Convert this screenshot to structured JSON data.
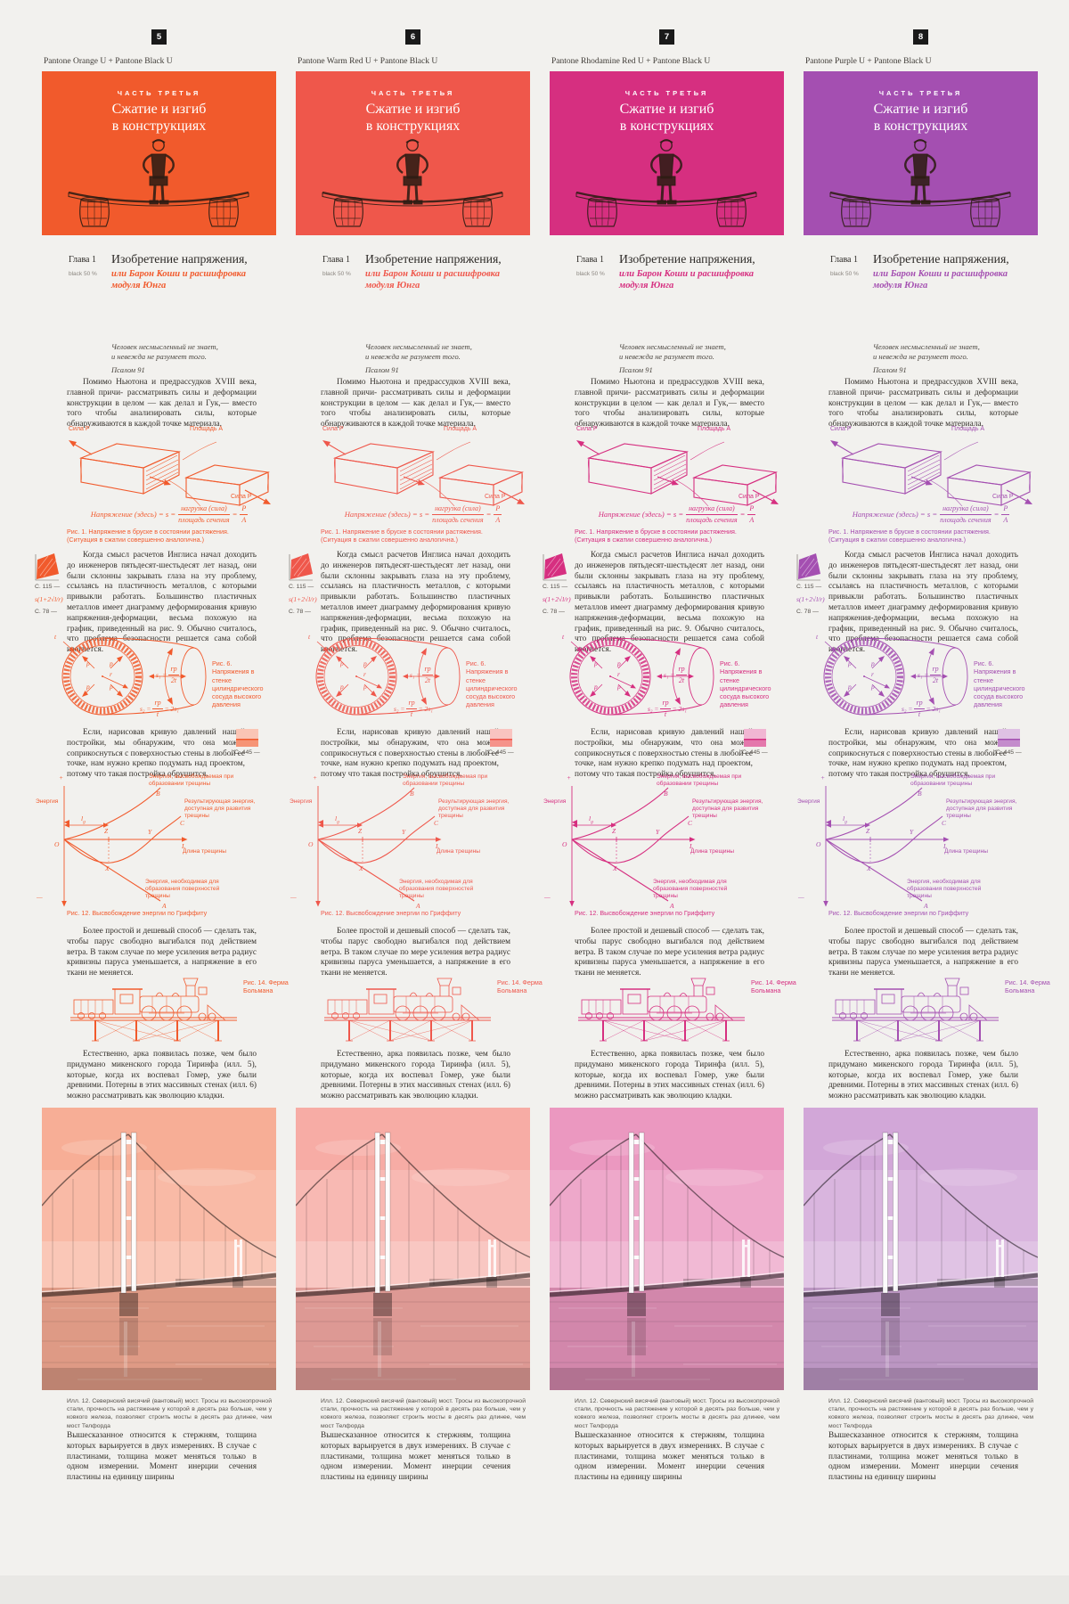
{
  "page": {
    "background": "#f2f1ee",
    "badge_color": "#1a1a1a",
    "bottom_band": "#e9e8e5"
  },
  "columns": [
    {
      "badge": "5",
      "pantone_label": "Pantone Orange U + Pantone Black U",
      "accent": "#f15a2c"
    },
    {
      "badge": "6",
      "pantone_label": "Pantone Warm Red U + Pantone Black U",
      "accent": "#ef574b"
    },
    {
      "badge": "7",
      "pantone_label": "Pantone Rhodamine Red U + Pantone Black U",
      "accent": "#d62f80"
    },
    {
      "badge": "8",
      "pantone_label": "Pantone Purple U + Pantone Black U",
      "accent": "#a44fb1"
    }
  ],
  "shared": {
    "cover": {
      "kicker": "ЧАСТЬ ТРЕТЬЯ",
      "title_line1": "Сжатие и изгиб",
      "title_line2": "в конструкциях"
    },
    "chapter": {
      "label": "Глава 1",
      "ink_note": "black 50 %",
      "title": "Изобретение напряжения,",
      "subtitle": "или Барон Коши и расшифровка модуля Юнга"
    },
    "epigraph": {
      "line1": "Человек несмысленный не знает,",
      "line2": "и невежда не разумеет того.",
      "source": "Псалом 91"
    },
    "para1": "Помимо Ньютона и предрассудков XVIII века, главной причи- рассматривать силы и деформации конструкции в целом — как делал и Гук,— вместо того чтобы анализировать силы, которые обнаруживаются в каждой точке материала.",
    "fig1": {
      "force_top": "Сила P",
      "area": "Площадь A",
      "force_bottom": "Сила P",
      "f_lhs": "Напряжение (здесь) = s =",
      "f_num": "нагрузка (сила)",
      "f_den": "площадь сечения",
      "f_eq": "=",
      "f_num2": "P",
      "f_den2": "A",
      "caption": "Рис. 1. Напряжение в бруске в состоянии растяжения. (Ситуация в сжатии совершенно аналогична.)"
    },
    "margin1": {
      "ref1": "С. 115 —",
      "formula": "s(1+2√l/r)",
      "ref2": "С. 78 —"
    },
    "para2": "Когда смысл расчетов Инглиса начал доходить до инженеров пятьдесят-шестьдесят лет назад, они были склонны закрывать глаза на эту проблему, ссылаясь на пластичность металлов, с которыми привыкли работать. Большинство пластичных металлов имеет диаграмму деформирования кривую напряжения-деформации, весьма похожую на график, приведенный на рис. 9. Обычно считалось, что проблема безопасности решается сама собой изогнется.",
    "fig6": {
      "p": "p",
      "t": "t",
      "r": "r",
      "f1_lhs": "s₁ =",
      "f1_num": "rp",
      "f1_den": "2t",
      "f2_lhs": "s₂ =",
      "f2_num": "rp",
      "f2_den": "t",
      "f2_tail": "= 2s₁",
      "caption": "Рис. 6. Напряжения в стенке цилиндрического сосуда высокого давления"
    },
    "para3": "Если, нарисовав кривую давлений нашей постройки, мы обнаружим, что она может соприкоснуться с поверхностью стены в любой ее точке, нам нужно крепко подумать над проектом, потому что такая постройка обрушится.",
    "margin2": {
      "ref": "С. 445 —"
    },
    "fig12": {
      "plus": "+",
      "minus": "—",
      "energy": "Энергия",
      "origin": "O",
      "z": "Z",
      "x": "X",
      "y": "Y",
      "b": "B",
      "c": "C",
      "a": "A",
      "l": "L",
      "lg_main": "l",
      "lg_sub": "g",
      "curve_b": "Энергия, высвобождаемая при образовании трещины",
      "curve_c": "Результирующая энергия, доступная для развития трещины",
      "curve_a": "Энергия, необходимая для образования поверхностей трещины",
      "xaxis": "Длина трещины",
      "caption": "Рис. 12. Высвобождение энергии по Гриффиту"
    },
    "para4": "Более простой и дешевый способ — сделать так, чтобы парус свободно выгибался под действием ветра. В таком случае по мере усиления ветра радиус кривизны паруса уменьшается, а напряжение в его ткани не меняется.",
    "fig14": {
      "caption": "Рис. 14. Ферма Больмана"
    },
    "para5": "Естественно, арка появилась позже, чем было придумано микенского города Тиринфа (илл. 5), которые, когда их воспевал Гомер, уже были древними. Потерны в этих массивных стенах (илл. 6) можно рассматривать как эволюцию кладки.",
    "photo_caption": "Илл. 12. Севернский висячий (вантовый) мост. Тросы из высокопрочной стали, прочность на растяжение у которой в десять раз больше, чем у ковкого железа, позволяют строить мосты в десять раз длинее, чем мост Телфорда",
    "para6": "Вышесказанное относится к стержням, толщина которых варьируется в двух измерениях. В случае с пластинами, толщина может меняться только в одном измерении. Момент инерции сечения пластины на единицу ширины"
  }
}
